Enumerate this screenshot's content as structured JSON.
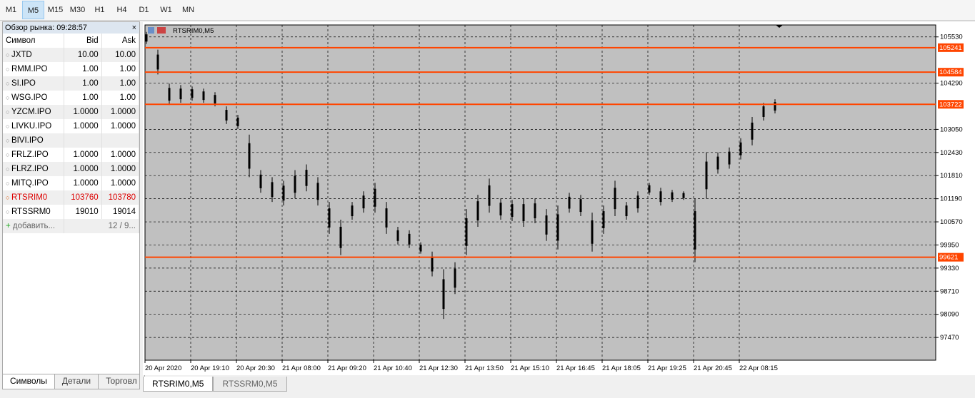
{
  "toolbar": {
    "timeframes": [
      "M1",
      "M5",
      "M15",
      "M30",
      "H1",
      "H4",
      "D1",
      "W1",
      "MN"
    ],
    "selected": 1
  },
  "market_watch": {
    "title": "Обзор рынка: 09:28:57",
    "headers": [
      "Символ",
      "Bid",
      "Ask"
    ],
    "rows": [
      [
        "JXTD",
        "10.00",
        "10.00"
      ],
      [
        "RMM.IPO",
        "1.00",
        "1.00"
      ],
      [
        "SI.IPO",
        "1.00",
        "1.00"
      ],
      [
        "WSG.IPO",
        "1.00",
        "1.00"
      ],
      [
        "YZCM.IPO",
        "1.0000",
        "1.0000"
      ],
      [
        "LIVKU.IPO",
        "1.0000",
        "1.0000"
      ],
      [
        "BIVI.IPO",
        null,
        null
      ],
      [
        "FRLZ.IPO",
        "1.0000",
        "1.0000"
      ],
      [
        "FLRZ.IPO",
        "1.0000",
        "1.0000"
      ],
      [
        "MITQ.IPO",
        "1.0000",
        "1.0000"
      ],
      [
        "RTSRIM0",
        "103760",
        "103780"
      ],
      [
        "RTSSRM0",
        "19010",
        "19014"
      ]
    ],
    "add_label": "добавить...",
    "count": "12 / 9...",
    "tabs": [
      "Символы",
      "Детали",
      "Торговл"
    ]
  },
  "chart_tabs": [
    "RTSRIM0,M5",
    "RTSSRM0,M5"
  ],
  "chart_data": {
    "type": "candlestick",
    "title": "RTSRIM0,M5",
    "ylim": [
      96860,
      105850
    ],
    "yticks": [
      105530,
      104290,
      103050,
      102430,
      101810,
      101190,
      100570,
      99950,
      99330,
      98710,
      98090,
      97470
    ],
    "x_labels": [
      "20 Apr 2020",
      "20 Apr 19:10",
      "20 Apr 20:30",
      "21 Apr 08:00",
      "21 Apr 09:20",
      "21 Apr 10:40",
      "21 Apr 12:30",
      "21 Apr 13:50",
      "21 Apr 15:10",
      "21 Apr 16:45",
      "21 Apr 18:05",
      "21 Apr 19:25",
      "21 Apr 20:45",
      "22 Apr 08:15"
    ],
    "levels": [
      105241,
      104584,
      103722,
      99621
    ],
    "level_color": "#ff4500",
    "candle_color": "#000000",
    "grid": true,
    "candles": [
      [
        105663,
        105340
      ],
      [
        105188,
        104523
      ],
      [
        104276,
        103706
      ],
      [
        104238,
        103763
      ],
      [
        104200,
        103820
      ],
      [
        104143,
        103763
      ],
      [
        104048,
        103668
      ],
      [
        103668,
        103193
      ],
      [
        103440,
        103060
      ],
      [
        102908,
        101768
      ],
      [
        101958,
        101350
      ],
      [
        101768,
        101103
      ],
      [
        101673,
        101008
      ],
      [
        101958,
        101198
      ],
      [
        102110,
        101388
      ],
      [
        101768,
        101008
      ],
      [
        101103,
        100248
      ],
      [
        100628,
        99678
      ],
      [
        101103,
        100628
      ],
      [
        101388,
        100818
      ],
      [
        101616,
        100818
      ],
      [
        101103,
        100248
      ],
      [
        100438,
        99963
      ],
      [
        100343,
        99868
      ],
      [
        100020,
        99716
      ],
      [
        99773,
        99108
      ],
      [
        99298,
        97968
      ],
      [
        99488,
        98633
      ],
      [
        100913,
        99678
      ],
      [
        101293,
        100438
      ],
      [
        101730,
        100818
      ],
      [
        101198,
        100628
      ],
      [
        101160,
        100590
      ],
      [
        101198,
        100438
      ],
      [
        101198,
        100533
      ],
      [
        100913,
        100058
      ],
      [
        101008,
        99830
      ],
      [
        101350,
        100818
      ],
      [
        101293,
        100723
      ],
      [
        100818,
        99773
      ],
      [
        101008,
        100248
      ],
      [
        101673,
        100723
      ],
      [
        101103,
        100628
      ],
      [
        101388,
        100818
      ],
      [
        101616,
        101293
      ],
      [
        101483,
        101008
      ],
      [
        101426,
        101103
      ],
      [
        101388,
        101160
      ],
      [
        101198,
        99488
      ],
      [
        102433,
        101198
      ],
      [
        102433,
        101863
      ],
      [
        102566,
        101996
      ],
      [
        102813,
        102243
      ],
      [
        103383,
        102623
      ],
      [
        103763,
        103288
      ],
      [
        103858,
        103478
      ]
    ]
  }
}
